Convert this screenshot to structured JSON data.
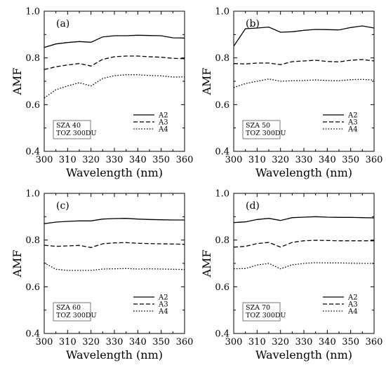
{
  "figure": {
    "xlabel": "Wavelength (nm)",
    "ylabel": "AMF"
  },
  "chart_data": [
    {
      "type": "line",
      "panel_label": "(a)",
      "annotation": [
        "SZA 40",
        "TOZ 300DU"
      ],
      "xlabel": "Wavelength (nm)",
      "ylabel": "AMF",
      "xlim": [
        300,
        360
      ],
      "ylim": [
        0.4,
        1.0
      ],
      "xticks": [
        300,
        310,
        320,
        330,
        340,
        350,
        360
      ],
      "yticks": [
        0.4,
        0.6,
        0.8,
        1.0
      ],
      "ytick_labels": [
        "0.4",
        "0.6",
        "0.8",
        "1.0"
      ],
      "legend_position": "bottom-right",
      "x": [
        300,
        305,
        310,
        315,
        320,
        325,
        330,
        335,
        340,
        345,
        350,
        355,
        360
      ],
      "series": [
        {
          "name": "A2",
          "style": "solid",
          "values": [
            0.845,
            0.86,
            0.866,
            0.87,
            0.867,
            0.89,
            0.895,
            0.895,
            0.897,
            0.896,
            0.895,
            0.886,
            0.885
          ]
        },
        {
          "name": "A3",
          "style": "dashed",
          "values": [
            0.75,
            0.762,
            0.77,
            0.776,
            0.765,
            0.794,
            0.805,
            0.808,
            0.808,
            0.805,
            0.803,
            0.798,
            0.797
          ]
        },
        {
          "name": "A4",
          "style": "dotted",
          "values": [
            0.628,
            0.664,
            0.68,
            0.694,
            0.68,
            0.712,
            0.724,
            0.728,
            0.728,
            0.725,
            0.723,
            0.718,
            0.719
          ]
        }
      ]
    },
    {
      "type": "line",
      "panel_label": "(b)",
      "annotation": [
        "SZA 50",
        "TOZ 300DU"
      ],
      "xlabel": "Wavelength (nm)",
      "ylabel": "AMF",
      "xlim": [
        300,
        360
      ],
      "ylim": [
        0.4,
        1.0
      ],
      "xticks": [
        300,
        310,
        320,
        330,
        340,
        350,
        360
      ],
      "yticks": [
        0.4,
        0.6,
        0.8,
        1.0
      ],
      "ytick_labels": [
        "0.4",
        "0.6",
        "0.8",
        "1.0"
      ],
      "legend_position": "bottom-right",
      "x": [
        300,
        305,
        310,
        315,
        320,
        325,
        330,
        335,
        340,
        345,
        350,
        355,
        360
      ],
      "series": [
        {
          "name": "A2",
          "style": "solid",
          "values": [
            0.85,
            0.925,
            0.928,
            0.932,
            0.91,
            0.912,
            0.918,
            0.922,
            0.921,
            0.92,
            0.93,
            0.937,
            0.928
          ]
        },
        {
          "name": "A3",
          "style": "dashed",
          "values": [
            0.776,
            0.774,
            0.778,
            0.778,
            0.771,
            0.784,
            0.787,
            0.79,
            0.785,
            0.783,
            0.79,
            0.793,
            0.787
          ]
        },
        {
          "name": "A4",
          "style": "dotted",
          "values": [
            0.673,
            0.69,
            0.7,
            0.71,
            0.7,
            0.702,
            0.703,
            0.706,
            0.703,
            0.702,
            0.707,
            0.708,
            0.705
          ]
        }
      ]
    },
    {
      "type": "line",
      "panel_label": "(c)",
      "annotation": [
        "SZA 60",
        "TOZ 300DU"
      ],
      "xlabel": "Wavelength (nm)",
      "ylabel": "AMF",
      "xlim": [
        300,
        360
      ],
      "ylim": [
        0.4,
        1.0
      ],
      "xticks": [
        300,
        310,
        320,
        330,
        340,
        350,
        360
      ],
      "yticks": [
        0.4,
        0.6,
        0.8,
        1.0
      ],
      "ytick_labels": [
        "0.4",
        "0.6",
        "0.8",
        "1.0"
      ],
      "legend_position": "bottom-right",
      "x": [
        300,
        305,
        310,
        315,
        320,
        325,
        330,
        335,
        340,
        345,
        350,
        355,
        360
      ],
      "series": [
        {
          "name": "A2",
          "style": "solid",
          "values": [
            0.87,
            0.877,
            0.88,
            0.882,
            0.882,
            0.89,
            0.892,
            0.893,
            0.89,
            0.888,
            0.887,
            0.886,
            0.886
          ]
        },
        {
          "name": "A3",
          "style": "dashed",
          "values": [
            0.778,
            0.773,
            0.775,
            0.777,
            0.768,
            0.784,
            0.788,
            0.789,
            0.786,
            0.785,
            0.784,
            0.783,
            0.782
          ]
        },
        {
          "name": "A4",
          "style": "dotted",
          "values": [
            0.702,
            0.675,
            0.67,
            0.67,
            0.67,
            0.676,
            0.677,
            0.678,
            0.676,
            0.677,
            0.676,
            0.675,
            0.674
          ]
        }
      ]
    },
    {
      "type": "line",
      "panel_label": "(d)",
      "annotation": [
        "SZA 70",
        "TOZ 300DU"
      ],
      "xlabel": "Wavelength (nm)",
      "ylabel": "AMF",
      "xlim": [
        300,
        360
      ],
      "ylim": [
        0.4,
        1.0
      ],
      "xticks": [
        300,
        310,
        320,
        330,
        340,
        350,
        360
      ],
      "yticks": [
        0.4,
        0.6,
        0.8,
        1.0
      ],
      "ytick_labels": [
        "0.4",
        "0.6",
        "0.8",
        "1.0"
      ],
      "legend_position": "bottom-right",
      "x": [
        300,
        305,
        310,
        315,
        320,
        325,
        330,
        335,
        340,
        345,
        350,
        355,
        360
      ],
      "series": [
        {
          "name": "A2",
          "style": "solid",
          "values": [
            0.875,
            0.878,
            0.888,
            0.893,
            0.884,
            0.896,
            0.898,
            0.9,
            0.898,
            0.897,
            0.897,
            0.896,
            0.895
          ]
        },
        {
          "name": "A3",
          "style": "dashed",
          "values": [
            0.77,
            0.773,
            0.785,
            0.79,
            0.77,
            0.79,
            0.797,
            0.799,
            0.798,
            0.797,
            0.797,
            0.797,
            0.797
          ]
        },
        {
          "name": "A4",
          "style": "dotted",
          "values": [
            0.677,
            0.678,
            0.693,
            0.7,
            0.677,
            0.694,
            0.7,
            0.703,
            0.702,
            0.702,
            0.701,
            0.7,
            0.7
          ]
        }
      ]
    }
  ]
}
